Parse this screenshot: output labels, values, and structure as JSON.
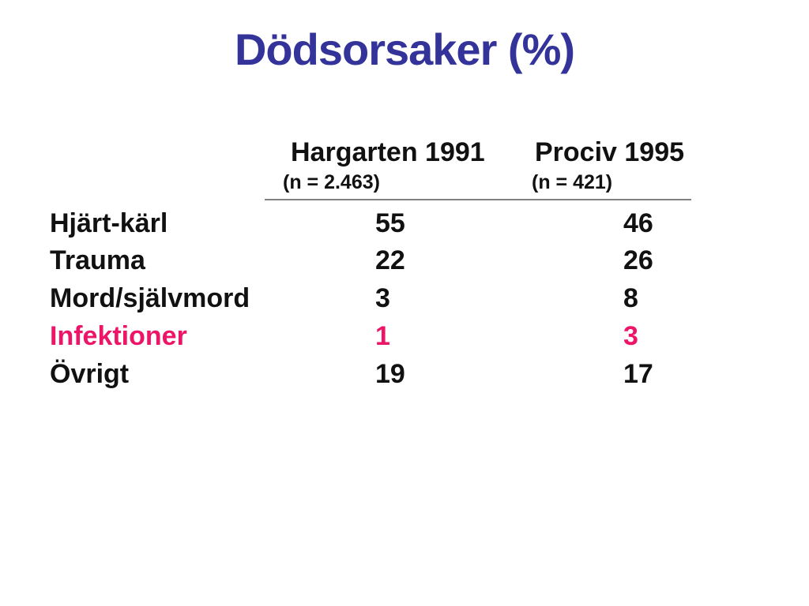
{
  "slide": {
    "title": "Dödsorsaker (%)"
  },
  "colors": {
    "title_blue": "#333399",
    "highlight_pink": "#ED1568",
    "text_black": "#111111",
    "rule_gray": "#808080"
  },
  "table": {
    "columns": [
      {
        "label": "Hargarten 1991",
        "n_label": "(n = 2.463)"
      },
      {
        "label": "Prociv 1995",
        "n_label": "(n = 421)"
      }
    ],
    "rows": [
      {
        "label": "Hjärt-kärl",
        "hargarten": "55",
        "prociv": "46",
        "highlighted": false
      },
      {
        "label": "Trauma",
        "hargarten": "22",
        "prociv": "26",
        "highlighted": false
      },
      {
        "label": "Mord/självmord",
        "hargarten": "3",
        "prociv": "8",
        "highlighted": false
      },
      {
        "label": "Infektioner",
        "hargarten": "1",
        "prociv": "3",
        "highlighted": true
      },
      {
        "label": "Övrigt",
        "hargarten": "19",
        "prociv": "17",
        "highlighted": false
      }
    ]
  }
}
